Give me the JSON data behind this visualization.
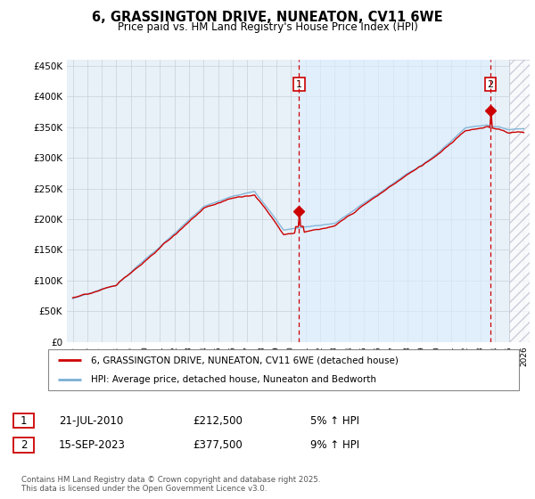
{
  "title": "6, GRASSINGTON DRIVE, NUNEATON, CV11 6WE",
  "subtitle": "Price paid vs. HM Land Registry's House Price Index (HPI)",
  "legend_line1": "6, GRASSINGTON DRIVE, NUNEATON, CV11 6WE (detached house)",
  "legend_line2": "HPI: Average price, detached house, Nuneaton and Bedworth",
  "annotation1_date": "21-JUL-2010",
  "annotation1_price": "£212,500",
  "annotation1_pct": "5% ↑ HPI",
  "annotation2_date": "15-SEP-2023",
  "annotation2_price": "£377,500",
  "annotation2_pct": "9% ↑ HPI",
  "footnote": "Contains HM Land Registry data © Crown copyright and database right 2025.\nThis data is licensed under the Open Government Licence v3.0.",
  "red_color": "#cc0000",
  "blue_color": "#7ab0d4",
  "shade_color": "#ddeeff",
  "plot_bg": "#e8f0f8",
  "hatch_color": "#bbbbcc",
  "grid_color": "#c8d0d8",
  "ylim": [
    0,
    460000
  ],
  "yticks": [
    0,
    50000,
    100000,
    150000,
    200000,
    250000,
    300000,
    350000,
    400000,
    450000
  ],
  "year_start": 1995,
  "year_end": 2026,
  "t1": 2010.55,
  "t2": 2023.71,
  "v1": 212500,
  "v2": 377500
}
